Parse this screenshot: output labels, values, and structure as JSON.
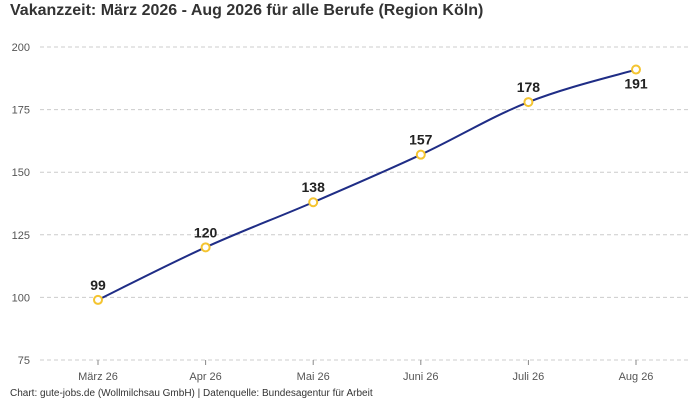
{
  "chart_data": {
    "type": "line",
    "title": "Vakanzzeit: März 2026 - Aug 2026 für alle Berufe (Region Köln)",
    "categories": [
      "März 26",
      "Apr 26",
      "Mai 26",
      "Juni 26",
      "Juli 26",
      "Aug 26"
    ],
    "series": [
      {
        "values": [
          99,
          120,
          138,
          157,
          178,
          191
        ]
      }
    ],
    "yticks": [
      "75",
      "100",
      "125",
      "150",
      "175",
      "200"
    ],
    "ylim": [
      75,
      200
    ],
    "grid": true,
    "line_color": "#1f2d86",
    "marker_color": "#f4c430",
    "footer": "Chart: gute-jobs.de (Wollmilchsau GmbH) | Datenquelle: Bundesagentur für Arbeit"
  }
}
